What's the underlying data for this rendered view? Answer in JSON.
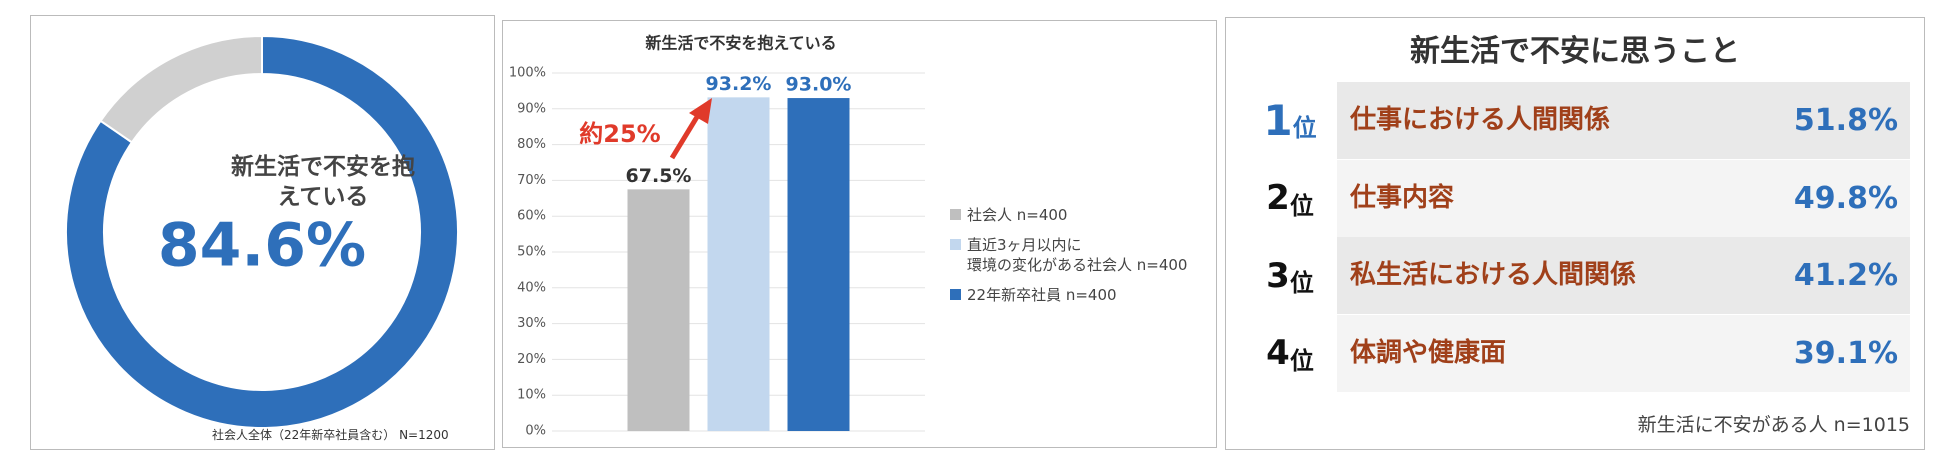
{
  "chart_data": [
    {
      "type": "donut",
      "center_label": "新生活で不安を抱えている",
      "values": [
        84.6,
        15.4
      ],
      "value_labels": [
        "84.6%",
        null
      ],
      "colors": [
        "#2e6fba",
        "#d0d0d0"
      ],
      "note": "社会人全体（22年新卒社員含む） N=1200"
    },
    {
      "type": "bar",
      "title": "新生活で不安を抱えている",
      "categories": [
        null
      ],
      "series": [
        {
          "name": "社会人 n=400",
          "color": "#bfbfbf",
          "values": [
            67.5
          ],
          "value_labels": [
            "67.5%"
          ]
        },
        {
          "name": "直近3ヶ月以内に\n環境の変化がある社会人 n=400",
          "color": "#c2d7ee",
          "values": [
            93.2
          ],
          "value_labels": [
            "93.2%"
          ]
        },
        {
          "name": "22年新卒社員 n=400",
          "color": "#2e6fba",
          "values": [
            93.0
          ],
          "value_labels": [
            "93.0%"
          ]
        }
      ],
      "ylim": [
        0,
        100
      ],
      "yticks": [
        {
          "value": 0,
          "label": "0%"
        },
        {
          "value": 10,
          "label": "10%"
        },
        {
          "value": 20,
          "label": "20%"
        },
        {
          "value": 30,
          "label": "30%"
        },
        {
          "value": 40,
          "label": "40%"
        },
        {
          "value": 50,
          "label": "50%"
        },
        {
          "value": 60,
          "label": "60%"
        },
        {
          "value": 70,
          "label": "70%"
        },
        {
          "value": 80,
          "label": "80%"
        },
        {
          "value": 90,
          "label": "90%"
        },
        {
          "value": 100,
          "label": "100%"
        }
      ],
      "grid": true,
      "legend": "right",
      "annotation": "約25%"
    }
  ],
  "ranking": {
    "title": "新生活で不安に思うこと",
    "rows": [
      {
        "rank": "1",
        "suffix": "位",
        "item": "仕事における人間関係",
        "value": "51.8%"
      },
      {
        "rank": "2",
        "suffix": "位",
        "item": "仕事内容",
        "value": "49.8%"
      },
      {
        "rank": "3",
        "suffix": "位",
        "item": "私生活における人間関係",
        "value": "41.2%"
      },
      {
        "rank": "4",
        "suffix": "位",
        "item": "体調や健康面",
        "value": "39.1%"
      }
    ],
    "note": "新生活に不安がある人 n=1015"
  }
}
